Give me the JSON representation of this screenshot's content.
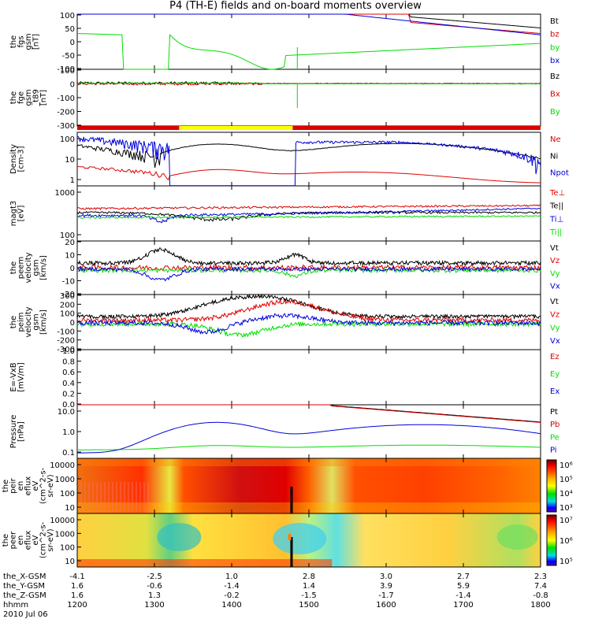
{
  "title": "P4 (TH-E) fields and on-board moments overview",
  "colors": {
    "black": "#000000",
    "red": "#dd0000",
    "green": "#00dd00",
    "blue": "#0000dd",
    "yellow": "#ffff00"
  },
  "chart_data": [
    {
      "id": "fgs",
      "type": "line",
      "ylabel": [
        "the",
        "fgs",
        "gsm",
        "[nT]"
      ],
      "yticks": [
        "100",
        "50",
        "0",
        "-50",
        "-100"
      ],
      "ylim": [
        -100,
        100
      ],
      "series": [
        {
          "name": "Bt",
          "color": "black"
        },
        {
          "name": "bz",
          "color": "red"
        },
        {
          "name": "by",
          "color": "green"
        },
        {
          "name": "bx",
          "color": "blue"
        }
      ]
    },
    {
      "id": "fge",
      "type": "line",
      "ylabel": [
        "the",
        "fge",
        "gsm",
        "_t89",
        "[nT]"
      ],
      "yticks": [
        "100",
        "0",
        "-100",
        "-200",
        "-300"
      ],
      "ylim": [
        -350,
        120
      ],
      "series": [
        {
          "name": "Bz",
          "color": "black"
        },
        {
          "name": "Bx",
          "color": "red"
        },
        {
          "name": "By",
          "color": "green"
        }
      ]
    },
    {
      "id": "dens",
      "type": "line",
      "ylabel": [
        "Density",
        "[cm-3]"
      ],
      "yticks": [
        "100",
        "10",
        "1"
      ],
      "scale": "log",
      "series": [
        {
          "name": "Ne",
          "color": "red"
        },
        {
          "name": "Ni",
          "color": "black"
        },
        {
          "name": "Npot",
          "color": "blue"
        }
      ]
    },
    {
      "id": "temp",
      "type": "line",
      "ylabel": [
        "magt3",
        "[eV]"
      ],
      "yticks": [
        "1000",
        "100"
      ],
      "scale": "log",
      "series": [
        {
          "name": "Te⊥",
          "color": "red"
        },
        {
          "name": "Te||",
          "color": "black"
        },
        {
          "name": "Ti⊥",
          "color": "blue"
        },
        {
          "name": "Ti||",
          "color": "green"
        }
      ]
    },
    {
      "id": "veem",
      "type": "line",
      "ylabel": [
        "the",
        "peem",
        "velocity",
        "gsm",
        "[km/s]"
      ],
      "yticks": [
        "20",
        "10",
        "0",
        "-10",
        "-20"
      ],
      "ylim": [
        -20,
        20
      ],
      "series": [
        {
          "name": "Vt",
          "color": "black"
        },
        {
          "name": "Vz",
          "color": "red"
        },
        {
          "name": "Vy",
          "color": "green"
        },
        {
          "name": "Vx",
          "color": "blue"
        }
      ]
    },
    {
      "id": "veim",
      "type": "line",
      "ylabel": [
        "the",
        "peim",
        "velocity",
        "gsm",
        "[km/s]"
      ],
      "yticks": [
        "300",
        "200",
        "100",
        "0",
        "-100",
        "-200",
        "-300"
      ],
      "ylim": [
        -300,
        300
      ],
      "series": [
        {
          "name": "Vt",
          "color": "black"
        },
        {
          "name": "Vz",
          "color": "red"
        },
        {
          "name": "Vy",
          "color": "green"
        },
        {
          "name": "Vx",
          "color": "blue"
        }
      ]
    },
    {
      "id": "efield",
      "type": "line",
      "ylabel": [
        "E=-VxB",
        "[mV/m]"
      ],
      "yticks": [
        "1.0",
        "0.8",
        "0.6",
        "0.4",
        "0.2",
        "0.0"
      ],
      "ylim": [
        0,
        1
      ],
      "series": [
        {
          "name": "Ez",
          "color": "red"
        },
        {
          "name": "Ey",
          "color": "green"
        },
        {
          "name": "Ex",
          "color": "blue"
        }
      ]
    },
    {
      "id": "press",
      "type": "line",
      "ylabel": [
        "Pressure",
        "[nPa]"
      ],
      "yticks": [
        "10.0",
        "1.0",
        "0.1"
      ],
      "scale": "log",
      "series": [
        {
          "name": "Pt",
          "color": "black"
        },
        {
          "name": "Pb",
          "color": "red"
        },
        {
          "name": "Pe",
          "color": "green"
        },
        {
          "name": "Pi",
          "color": "blue"
        }
      ]
    },
    {
      "id": "peir",
      "type": "heatmap",
      "ylabel": [
        "the",
        "peir",
        "en",
        "eflux",
        "eV",
        "(cm^2-s-",
        "sr-eV)"
      ],
      "yticks": [
        "10000",
        "1000",
        "100",
        "10"
      ],
      "cbar_ticks": [
        "10⁶",
        "10⁵",
        "10⁴",
        "10³"
      ]
    },
    {
      "id": "peer",
      "type": "heatmap",
      "ylabel": [
        "the",
        "peer",
        "en",
        "eflux",
        "eV",
        "(cm^2-s-",
        "sr-eV)"
      ],
      "yticks": [
        "10000",
        "1000",
        "100",
        "10"
      ],
      "cbar_ticks": [
        "10⁷",
        "10⁶",
        "10⁵"
      ]
    }
  ],
  "xaxis": {
    "rows": [
      {
        "label": "the_X-GSM",
        "values": [
          "-4.1",
          "-2.5",
          "1.0",
          "2.8",
          "3.0",
          "2.7",
          "2.3"
        ]
      },
      {
        "label": "the_Y-GSM",
        "values": [
          "1.6",
          "-0.6",
          "-1.4",
          "1.4",
          "3.9",
          "5.9",
          "7.4"
        ]
      },
      {
        "label": "the_Z-GSM",
        "values": [
          "1.6",
          "1.3",
          "-0.2",
          "-1.5",
          "-1.7",
          "-1.4",
          "-0.8"
        ]
      },
      {
        "label": "hhmm",
        "values": [
          "1200",
          "1300",
          "1400",
          "1500",
          "1600",
          "1700",
          "1800"
        ]
      }
    ],
    "date": "2010 Jul 06"
  }
}
